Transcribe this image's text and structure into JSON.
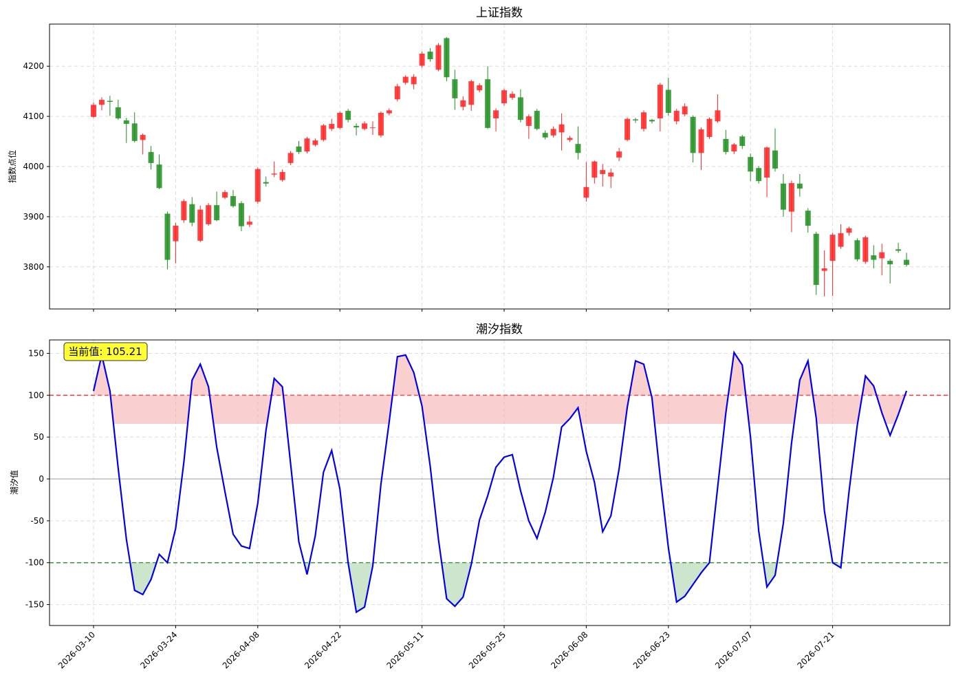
{
  "chart_data": [
    {
      "type": "candlestick",
      "title": "上证指数",
      "ylabel": "指数点位",
      "up_color": "#ff2222",
      "down_color": "#1f8f1f",
      "grid": true,
      "ylim": [
        3716,
        4284
      ],
      "yticks": [
        3800,
        3900,
        4000,
        4100,
        4200
      ],
      "open": [
        4099,
        4123,
        4131,
        4118,
        4092,
        4086,
        4053,
        4029,
        4004,
        3906,
        3851,
        3893,
        3925,
        3852,
        3885,
        3923,
        3938,
        3941,
        3927,
        3884,
        3930,
        3969,
        3984,
        3973,
        4007,
        4040,
        4030,
        4043,
        4053,
        4075,
        4077,
        4111,
        4081,
        4075,
        4077,
        4062,
        4106,
        4134,
        4167,
        4164,
        4201,
        4229,
        4193,
        4256,
        4174,
        4119,
        4123,
        4152,
        4174,
        4096,
        4126,
        4137,
        4138,
        4081,
        4111,
        4067,
        4062,
        4068,
        4053,
        4045,
        3938,
        3978,
        3985,
        3980,
        4018,
        4053,
        4094,
        4075,
        4093,
        4096,
        4153,
        4090,
        4104,
        4099,
        4027,
        4059,
        4090,
        4055,
        4030,
        4060,
        4019,
        3997,
        3978,
        4032,
        3966,
        3910,
        3966,
        3912,
        3866,
        3792,
        3812,
        3840,
        3868,
        3853,
        3810,
        3823,
        3817,
        3812,
        3835,
        3814
      ],
      "high": [
        4128,
        4138,
        4141,
        4133,
        4097,
        4108,
        4066,
        4041,
        4024,
        3910,
        3888,
        3935,
        3939,
        3922,
        3927,
        3950,
        3953,
        3953,
        3931,
        3902,
        3998,
        3980,
        4010,
        3994,
        4031,
        4051,
        4059,
        4056,
        4085,
        4095,
        4110,
        4115,
        4086,
        4090,
        4090,
        4110,
        4116,
        4165,
        4182,
        4184,
        4229,
        4236,
        4246,
        4258,
        4193,
        4140,
        4173,
        4166,
        4200,
        4116,
        4155,
        4150,
        4154,
        4104,
        4115,
        4072,
        4080,
        4106,
        4061,
        4080,
        4009,
        4012,
        4005,
        3996,
        4037,
        4098,
        4097,
        4112,
        4095,
        4167,
        4177,
        4115,
        4126,
        4102,
        4078,
        4098,
        4144,
        4073,
        4047,
        4063,
        4026,
        4001,
        4040,
        4076,
        3985,
        3972,
        3985,
        3917,
        3870,
        3833,
        3868,
        3885,
        3880,
        3857,
        3862,
        3843,
        3846,
        3816,
        3848,
        3828
      ],
      "low": [
        4097,
        4112,
        4101,
        4093,
        4047,
        4048,
        4024,
        3994,
        3955,
        3795,
        3807,
        3888,
        3881,
        3849,
        3882,
        3891,
        3935,
        3918,
        3871,
        3879,
        3926,
        3960,
        3979,
        3970,
        4003,
        4025,
        4026,
        4040,
        4050,
        4071,
        4074,
        4088,
        4062,
        4072,
        4063,
        4058,
        4102,
        4130,
        4163,
        4154,
        4197,
        4209,
        4190,
        4170,
        4113,
        4112,
        4111,
        4148,
        4075,
        4070,
        4121,
        4133,
        4088,
        4055,
        4072,
        4054,
        4058,
        4032,
        4049,
        4014,
        3930,
        3966,
        3960,
        3957,
        4011,
        4050,
        4087,
        4070,
        4086,
        4070,
        4101,
        4084,
        4100,
        4008,
        3993,
        4055,
        4087,
        4024,
        4025,
        4035,
        3971,
        3966,
        3939,
        3990,
        3900,
        3869,
        3940,
        3868,
        3744,
        3741,
        3742,
        3836,
        3862,
        3811,
        3806,
        3797,
        3783,
        3767,
        3828,
        3801
      ],
      "close": [
        4123,
        4133,
        4129,
        4096,
        4085,
        4051,
        4063,
        4007,
        3957,
        3814,
        3882,
        3931,
        3888,
        3914,
        3923,
        3893,
        3949,
        3921,
        3881,
        3890,
        3995,
        3966,
        3986,
        3989,
        4027,
        4029,
        4056,
        4052,
        4082,
        4085,
        4107,
        4093,
        4078,
        4086,
        4078,
        4107,
        4112,
        4160,
        4179,
        4179,
        4225,
        4214,
        4242,
        4178,
        4136,
        4132,
        4170,
        4162,
        4077,
        4112,
        4152,
        4145,
        4093,
        4100,
        4075,
        4058,
        4075,
        4084,
        4057,
        4027,
        3959,
        4010,
        3993,
        3988,
        4030,
        4095,
        4092,
        4108,
        4090,
        4163,
        4107,
        4111,
        4120,
        4027,
        4074,
        4095,
        4112,
        4029,
        4044,
        4041,
        3990,
        3971,
        4038,
        3996,
        3914,
        3967,
        3956,
        3882,
        3764,
        3797,
        3864,
        3867,
        3877,
        3815,
        3859,
        3814,
        3829,
        3805,
        3832,
        3804
      ]
    },
    {
      "type": "line",
      "title": "潮汐指数",
      "ylabel": "潮汐值",
      "grid": true,
      "ylim": [
        -175,
        166
      ],
      "yticks": [
        -150,
        -100,
        -50,
        0,
        50,
        100,
        150
      ],
      "categories": [
        "2026-03-10",
        null,
        null,
        null,
        null,
        null,
        null,
        null,
        null,
        null,
        "2026-03-24",
        null,
        null,
        null,
        null,
        null,
        null,
        null,
        null,
        null,
        "2026-04-08",
        null,
        null,
        null,
        null,
        null,
        null,
        null,
        null,
        null,
        "2026-04-22",
        null,
        null,
        null,
        null,
        null,
        null,
        null,
        null,
        null,
        "2026-05-11",
        null,
        null,
        null,
        null,
        null,
        null,
        null,
        null,
        null,
        "2026-05-25",
        null,
        null,
        null,
        null,
        null,
        null,
        null,
        null,
        null,
        "2026-06-08",
        null,
        null,
        null,
        null,
        null,
        null,
        null,
        null,
        null,
        "2026-06-23",
        null,
        null,
        null,
        null,
        null,
        null,
        null,
        null,
        null,
        "2026-07-07",
        null,
        null,
        null,
        null,
        null,
        null,
        null,
        null,
        null,
        "2026-07-21",
        null,
        null,
        null,
        null,
        null,
        null,
        null,
        null,
        null
      ],
      "series": [
        {
          "color": "#0000ee",
          "values": [
            105,
            148,
            105,
            13,
            -72,
            -133,
            -138,
            -120,
            -90,
            -100,
            -59,
            20,
            118,
            137,
            110,
            38,
            -15,
            -66,
            -80,
            -83,
            -29,
            58,
            120,
            110,
            18,
            -75,
            -114,
            -68,
            8,
            34,
            -12,
            -100,
            -159,
            -153,
            -104,
            -6,
            68,
            146,
            148,
            127,
            87,
            15,
            -72,
            -143,
            -152,
            -141,
            -102,
            -49,
            -20,
            14,
            26,
            29,
            -14,
            -50,
            -71,
            -40,
            2,
            62,
            72,
            85,
            33,
            -4,
            -63,
            -44,
            12,
            86,
            141,
            137,
            97,
            3,
            -82,
            -147,
            -140,
            -126,
            -112,
            -100,
            -10,
            79,
            151,
            136,
            50,
            -62,
            -129,
            -115,
            -53,
            43,
            118,
            141,
            73,
            -38,
            -100,
            -106,
            -15,
            64,
            123,
            111,
            79,
            52,
            77,
            105.21
          ]
        }
      ],
      "hlines": [
        {
          "value": 100,
          "color": "#ff3333",
          "fill": "#f4a0a0"
        },
        {
          "value": 0,
          "color": "#999999"
        },
        {
          "value": -100,
          "color": "#339933",
          "fill": "#99cc99"
        }
      ],
      "annotation": "当前值: 105.21"
    }
  ]
}
